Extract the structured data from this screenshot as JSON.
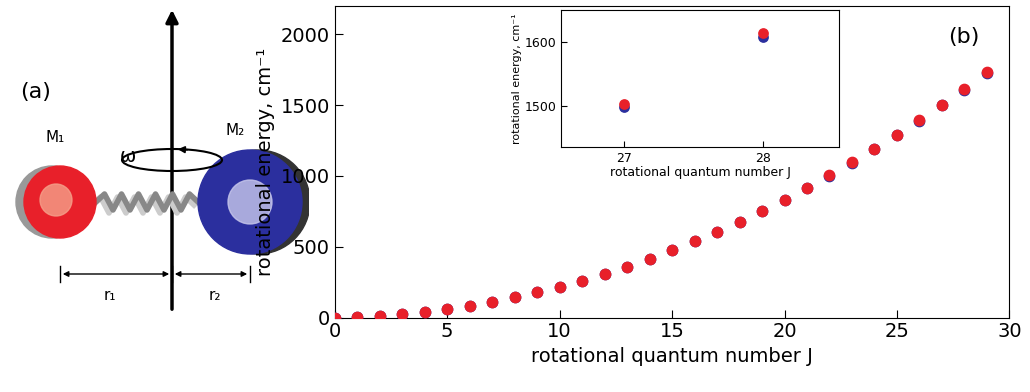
{
  "diagram": {
    "label": "(a)",
    "masses": [
      "M₁",
      "M₂"
    ],
    "angular_velocity": "ω",
    "distances": [
      "r₁",
      "r₂"
    ]
  },
  "chart_data": {
    "type": "scatter",
    "annotations": [
      "(b)"
    ],
    "xlabel": "rotational quantum number J",
    "ylabel": "rotational energy, cm⁻¹",
    "x": [
      0,
      1,
      2,
      3,
      4,
      5,
      6,
      7,
      8,
      9,
      10,
      11,
      12,
      13,
      14,
      15,
      16,
      17,
      18,
      19,
      20,
      21,
      22,
      23,
      24,
      25,
      26,
      27,
      28,
      29
    ],
    "series": [
      {
        "color": "#2b2f9e",
        "marker": "o",
        "values": [
          0,
          4,
          12,
          24,
          40,
          59,
          83,
          111,
          143,
          178,
          218,
          261,
          309,
          360,
          416,
          475,
          539,
          606,
          677,
          752,
          832,
          915,
          1002,
          1093,
          1188,
          1287,
          1390,
          1497,
          1608,
          1723
        ]
      },
      {
        "color": "#e8202a",
        "marker": "o",
        "values": [
          0,
          4,
          12,
          24,
          40,
          59,
          83,
          111,
          143,
          178,
          218,
          261,
          309,
          360,
          416,
          475,
          539,
          606,
          677,
          752,
          833,
          916,
          1004,
          1095,
          1191,
          1291,
          1394,
          1502,
          1614,
          1730
        ]
      }
    ],
    "xlim": [
      0,
      30
    ],
    "xticks": [
      0,
      5,
      10,
      15,
      20,
      25,
      30
    ],
    "ylim": [
      0,
      2200
    ],
    "yticks": [
      0,
      500,
      1000,
      1500,
      2000
    ],
    "inset": {
      "xlabel": "rotational quantum number J",
      "ylabel": "rotational energy, cm⁻¹",
      "x": [
        27,
        28
      ],
      "series": [
        {
          "color": "#2b2f9e",
          "marker": "o",
          "values": [
            1497,
            1608
          ]
        },
        {
          "color": "#e8202a",
          "marker": "o",
          "values": [
            1502,
            1614
          ]
        }
      ],
      "xlim": [
        26.55,
        28.55
      ],
      "xticks": [
        27,
        28
      ],
      "ylim": [
        1435,
        1650
      ],
      "yticks": [
        1500,
        1600
      ]
    }
  }
}
